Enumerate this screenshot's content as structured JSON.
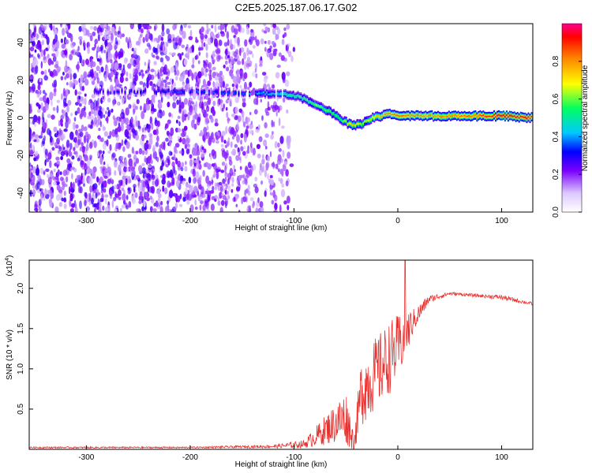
{
  "chart_data": [
    {
      "type": "heatmap",
      "title": "C2E5.2025.187.06.17.G02",
      "xlabel": "Height of straight line (km)",
      "ylabel": "Frequency (Hz)",
      "xlim": [
        -355,
        130
      ],
      "ylim": [
        -50,
        50
      ],
      "xticks": [
        -300,
        -200,
        -100,
        0,
        100
      ],
      "yticks": [
        -40,
        -20,
        0,
        20,
        40
      ],
      "colorbar": {
        "label": "Normalized spectral amplitude",
        "range": [
          0,
          1
        ],
        "ticks": [
          0.0,
          0.2,
          0.4,
          0.6,
          0.8
        ],
        "tick_labels": [
          "0.0",
          "0.2",
          "0.4",
          "0.6",
          "0.8"
        ]
      },
      "ridge": {
        "x": [
          -290,
          -240,
          -200,
          -150,
          -110,
          -95,
          -80,
          -65,
          -55,
          -45,
          -35,
          -25,
          -10,
          0,
          20,
          50,
          80,
          100,
          130
        ],
        "frequency": [
          14,
          14,
          14,
          13,
          13,
          11,
          7,
          3,
          -1,
          -4,
          -3,
          0,
          2,
          1,
          1,
          1,
          1,
          1,
          0
        ],
        "amplitude": [
          0.3,
          0.3,
          0.35,
          0.35,
          0.5,
          0.55,
          0.6,
          0.6,
          0.55,
          0.75,
          0.6,
          0.7,
          0.8,
          0.85,
          0.8,
          0.8,
          0.85,
          0.95,
          0.9
        ]
      }
    },
    {
      "type": "line",
      "xlabel": "Height of straight line (km)",
      "ylabel": "SNR (10 * v/v)",
      "y_multiplier": "(x10^4)",
      "y_multiplier_base": "(x10",
      "y_multiplier_exp": "4",
      "xlim": [
        -355,
        130
      ],
      "ylim": [
        0,
        2.35
      ],
      "xticks": [
        -300,
        -200,
        -100,
        0,
        100
      ],
      "yticks": [
        0.5,
        1.0,
        1.5,
        2.0
      ],
      "ytick_labels": [
        "0.5",
        "1.0",
        "1.5",
        "2.0"
      ],
      "color": "#e8312e",
      "envelope": {
        "x": [
          -355,
          -200,
          -120,
          -90,
          -75,
          -60,
          -50,
          -42,
          -35,
          -25,
          -15,
          -5,
          5,
          15,
          30,
          50,
          80,
          100,
          130
        ],
        "base": [
          0.02,
          0.02,
          0.03,
          0.05,
          0.15,
          0.25,
          0.3,
          0.05,
          0.6,
          0.75,
          0.9,
          1.05,
          1.25,
          1.55,
          1.85,
          1.93,
          1.9,
          1.88,
          1.8
        ],
        "amp": [
          0.01,
          0.01,
          0.02,
          0.05,
          0.15,
          0.25,
          0.35,
          0.1,
          0.45,
          0.45,
          0.45,
          0.45,
          0.35,
          0.15,
          0.05,
          0.02,
          0.02,
          0.03,
          0.02
        ]
      },
      "spike": {
        "x": 7,
        "y": 2.35
      }
    }
  ]
}
